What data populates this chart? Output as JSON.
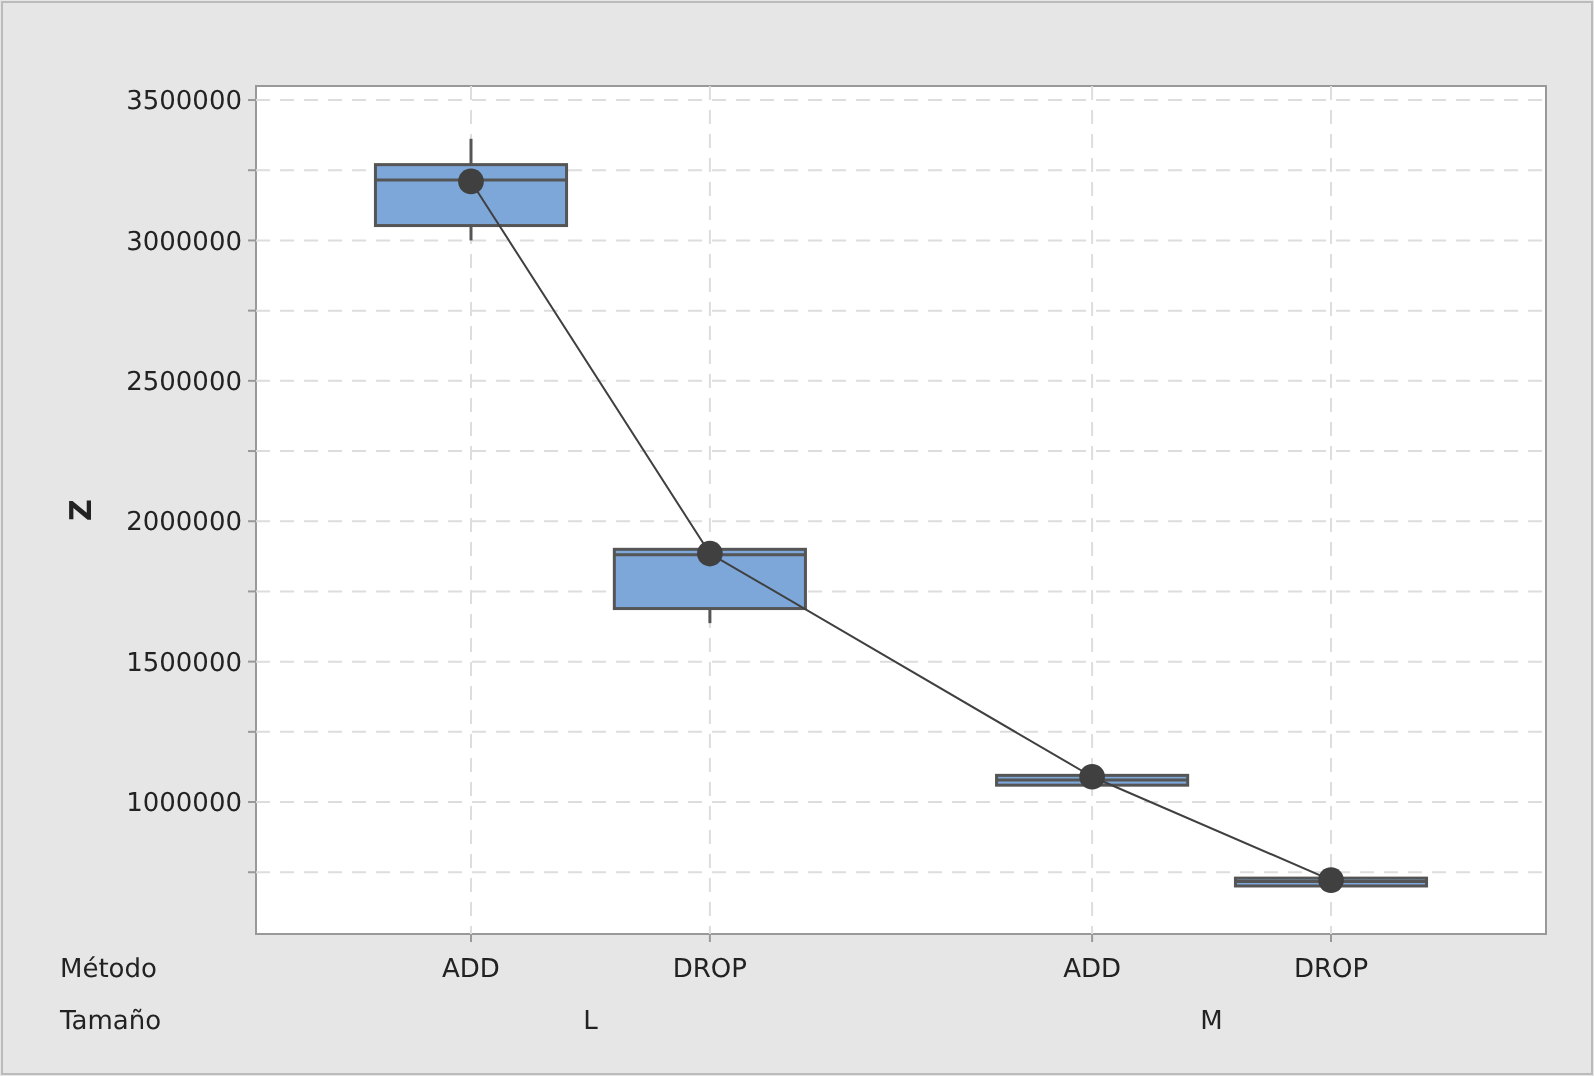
{
  "chart_data": {
    "type": "box",
    "ylabel": "Z",
    "categories": [
      "ADD",
      "DROP",
      "ADD",
      "DROP"
    ],
    "annotations": [
      "Método",
      "Tamaño",
      "L",
      "M"
    ],
    "ylim": [
      530000,
      3550000
    ],
    "yticks": [
      {
        "value": 750000,
        "label": null
      },
      1000000,
      {
        "value": 1250000,
        "label": null
      },
      1500000,
      {
        "value": 1750000,
        "label": null
      },
      2000000,
      {
        "value": 2250000,
        "label": null
      },
      2500000,
      {
        "value": 2750000,
        "label": null
      },
      3000000,
      {
        "value": 3250000,
        "label": null
      },
      3500000
    ],
    "grid": true,
    "series": [
      {
        "color": "#7da7d9",
        "boxes": [
          {
            "low": 3000000,
            "q1": 3053000,
            "median": 3215000,
            "q3": 3270000,
            "high": 3362000
          },
          {
            "low": 1637000,
            "q1": 1689000,
            "median": 1881000,
            "q3": 1900000,
            "high": 1900000
          },
          {
            "low": 1060000,
            "q1": 1060000,
            "median": 1078000,
            "q3": 1095000,
            "high": 1095000
          },
          {
            "low": 701000,
            "q1": 701000,
            "median": 717000,
            "q3": 729000,
            "high": 729000
          }
        ]
      },
      {
        "type": "line",
        "color": "#404040",
        "marker": "circle",
        "values": [
          3210000,
          1885000,
          1090000,
          722000
        ]
      }
    ]
  }
}
